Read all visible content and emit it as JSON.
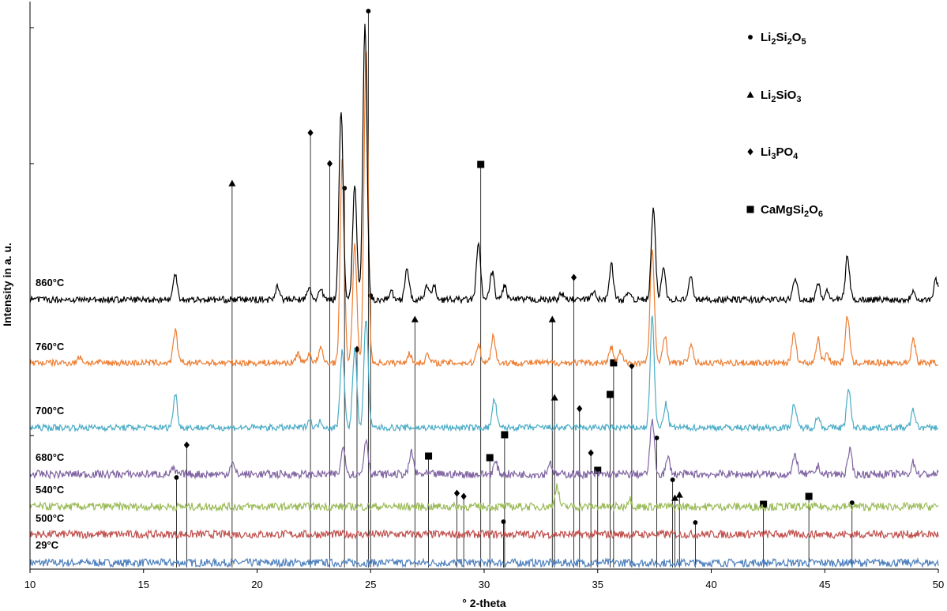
{
  "chart_data": {
    "type": "line",
    "title": "",
    "xlabel": "° 2-theta",
    "ylabel": "Intensity in a. u.",
    "xlim": [
      10,
      50
    ],
    "x_ticks": [
      "10",
      "15",
      "20",
      "25",
      "30",
      "35",
      "40",
      "45",
      "50"
    ],
    "grid": false,
    "legend_position": "top-right",
    "series": [
      {
        "name": "860°C",
        "color": "#000000",
        "noise": 4,
        "peaks": [
          [
            16.4,
            32
          ],
          [
            20.9,
            18
          ],
          [
            22.3,
            14
          ],
          [
            22.8,
            12
          ],
          [
            23.7,
            240
          ],
          [
            24.3,
            145
          ],
          [
            24.75,
            345
          ],
          [
            25.9,
            10
          ],
          [
            26.6,
            40
          ],
          [
            27.5,
            18
          ],
          [
            27.8,
            16
          ],
          [
            29.75,
            70
          ],
          [
            30.35,
            35
          ],
          [
            30.9,
            18
          ],
          [
            33.4,
            8
          ],
          [
            34.8,
            10
          ],
          [
            35.6,
            45
          ],
          [
            36.4,
            10
          ],
          [
            37.45,
            115
          ],
          [
            37.9,
            40
          ],
          [
            39.1,
            28
          ],
          [
            43.7,
            28
          ],
          [
            44.7,
            20
          ],
          [
            45.1,
            10
          ],
          [
            46.0,
            55
          ],
          [
            48.9,
            12
          ],
          [
            49.9,
            25
          ]
        ]
      },
      {
        "name": "760°C",
        "color": "#ED7D31",
        "noise": 4,
        "peaks": [
          [
            12.2,
            8
          ],
          [
            16.4,
            40
          ],
          [
            21.8,
            12
          ],
          [
            22.3,
            12
          ],
          [
            22.8,
            18
          ],
          [
            23.75,
            260
          ],
          [
            24.3,
            150
          ],
          [
            24.8,
            400
          ],
          [
            26.7,
            12
          ],
          [
            27.5,
            10
          ],
          [
            29.75,
            25
          ],
          [
            30.4,
            35
          ],
          [
            35.6,
            20
          ],
          [
            36.0,
            14
          ],
          [
            37.4,
            145
          ],
          [
            37.95,
            35
          ],
          [
            39.1,
            22
          ],
          [
            43.65,
            40
          ],
          [
            44.7,
            30
          ],
          [
            45.1,
            12
          ],
          [
            46.0,
            60
          ],
          [
            48.9,
            30
          ]
        ]
      },
      {
        "name": "700°C",
        "color": "#4BACC6",
        "noise": 4,
        "peaks": [
          [
            16.4,
            42
          ],
          [
            22.3,
            10
          ],
          [
            22.8,
            8
          ],
          [
            23.75,
            100
          ],
          [
            24.3,
            100
          ],
          [
            24.8,
            140
          ],
          [
            30.45,
            36
          ],
          [
            37.4,
            140
          ],
          [
            38.0,
            30
          ],
          [
            43.65,
            30
          ],
          [
            44.7,
            14
          ],
          [
            46.05,
            48
          ],
          [
            48.9,
            22
          ]
        ]
      },
      {
        "name": "680°C",
        "color": "#8064A2",
        "noise": 5,
        "peaks": [
          [
            16.3,
            6
          ],
          [
            18.9,
            15
          ],
          [
            23.8,
            35
          ],
          [
            24.8,
            45
          ],
          [
            26.8,
            28
          ],
          [
            30.5,
            15
          ],
          [
            32.9,
            15
          ],
          [
            37.4,
            70
          ],
          [
            38.1,
            20
          ],
          [
            43.7,
            25
          ],
          [
            44.7,
            10
          ],
          [
            46.1,
            30
          ],
          [
            48.9,
            15
          ]
        ]
      },
      {
        "name": "540°C",
        "color": "#9BBB59",
        "noise": 5,
        "peaks": [
          [
            33.2,
            26
          ],
          [
            36.4,
            10
          ]
        ]
      },
      {
        "name": "500°C",
        "color": "#C0504D",
        "noise": 5,
        "peaks": []
      },
      {
        "name": "29°C",
        "color": "#4F81BD",
        "noise": 5,
        "peaks": []
      }
    ],
    "reference_markers": [
      {
        "phase": "Li2Si2O5",
        "symbol": "circle",
        "x": [
          16.45,
          23.85,
          24.9,
          25.0,
          30.85,
          37.6,
          38.3,
          39.3,
          46.2
        ]
      },
      {
        "phase": "Li2SiO3",
        "symbol": "triangle",
        "x": [
          18.9,
          26.95,
          33.0,
          33.1,
          38.4,
          38.6
        ]
      },
      {
        "phase": "Li3PO4",
        "symbol": "diamond",
        "x": [
          16.9,
          22.35,
          23.2,
          24.4,
          28.8,
          29.1,
          33.95,
          34.2,
          34.7,
          36.5
        ]
      },
      {
        "phase": "CaMgSi2O6",
        "symbol": "square",
        "x": [
          27.55,
          29.85,
          30.25,
          30.9,
          35.0,
          35.55,
          35.7,
          42.3,
          44.3
        ]
      }
    ],
    "legend": [
      {
        "symbol": "circle",
        "label_main": "Li",
        "parts": [
          [
            "Li",
            ""
          ],
          [
            "2",
            "sub"
          ],
          [
            "Si",
            ""
          ],
          [
            "2",
            "sub"
          ],
          [
            "O",
            ""
          ],
          [
            "5",
            "sub"
          ]
        ]
      },
      {
        "symbol": "triangle",
        "parts": [
          [
            "Li",
            ""
          ],
          [
            "2",
            "sub"
          ],
          [
            "SiO",
            ""
          ],
          [
            "3",
            "sub"
          ]
        ]
      },
      {
        "symbol": "diamond",
        "parts": [
          [
            "Li",
            ""
          ],
          [
            "3",
            "sub"
          ],
          [
            "PO",
            ""
          ],
          [
            "4",
            "sub"
          ]
        ]
      },
      {
        "symbol": "square",
        "parts": [
          [
            "CaMgSi",
            ""
          ],
          [
            "2",
            "sub"
          ],
          [
            "O",
            ""
          ],
          [
            "6",
            "sub"
          ]
        ]
      }
    ]
  }
}
